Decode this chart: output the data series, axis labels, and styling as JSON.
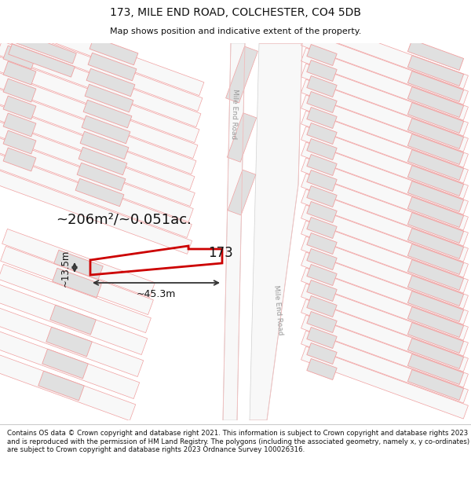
{
  "title_line1": "173, MILE END ROAD, COLCHESTER, CO4 5DB",
  "title_line2": "Map shows position and indicative extent of the property.",
  "footer_text": "Contains OS data © Crown copyright and database right 2021. This information is subject to Crown copyright and database rights 2023 and is reproduced with the permission of HM Land Registry. The polygons (including the associated geometry, namely x, y co-ordinates) are subject to Crown copyright and database rights 2023 Ordnance Survey 100026316.",
  "area_text": "~206m²/~0.051ac.",
  "property_number": "173",
  "dim_width": "~45.3m",
  "dim_height": "~13.5m",
  "bg_color": "#ffffff",
  "road_color": "#f0c0c0",
  "building_fill": "#e0e0e0",
  "building_outline": "#f0a0a0",
  "property_outline": "#cc0000",
  "road_label_top": "Mile End Road",
  "road_label_bot": "Mile End Road",
  "road_fill": "#f8f8f8",
  "road_outline": "#d0d0d0"
}
